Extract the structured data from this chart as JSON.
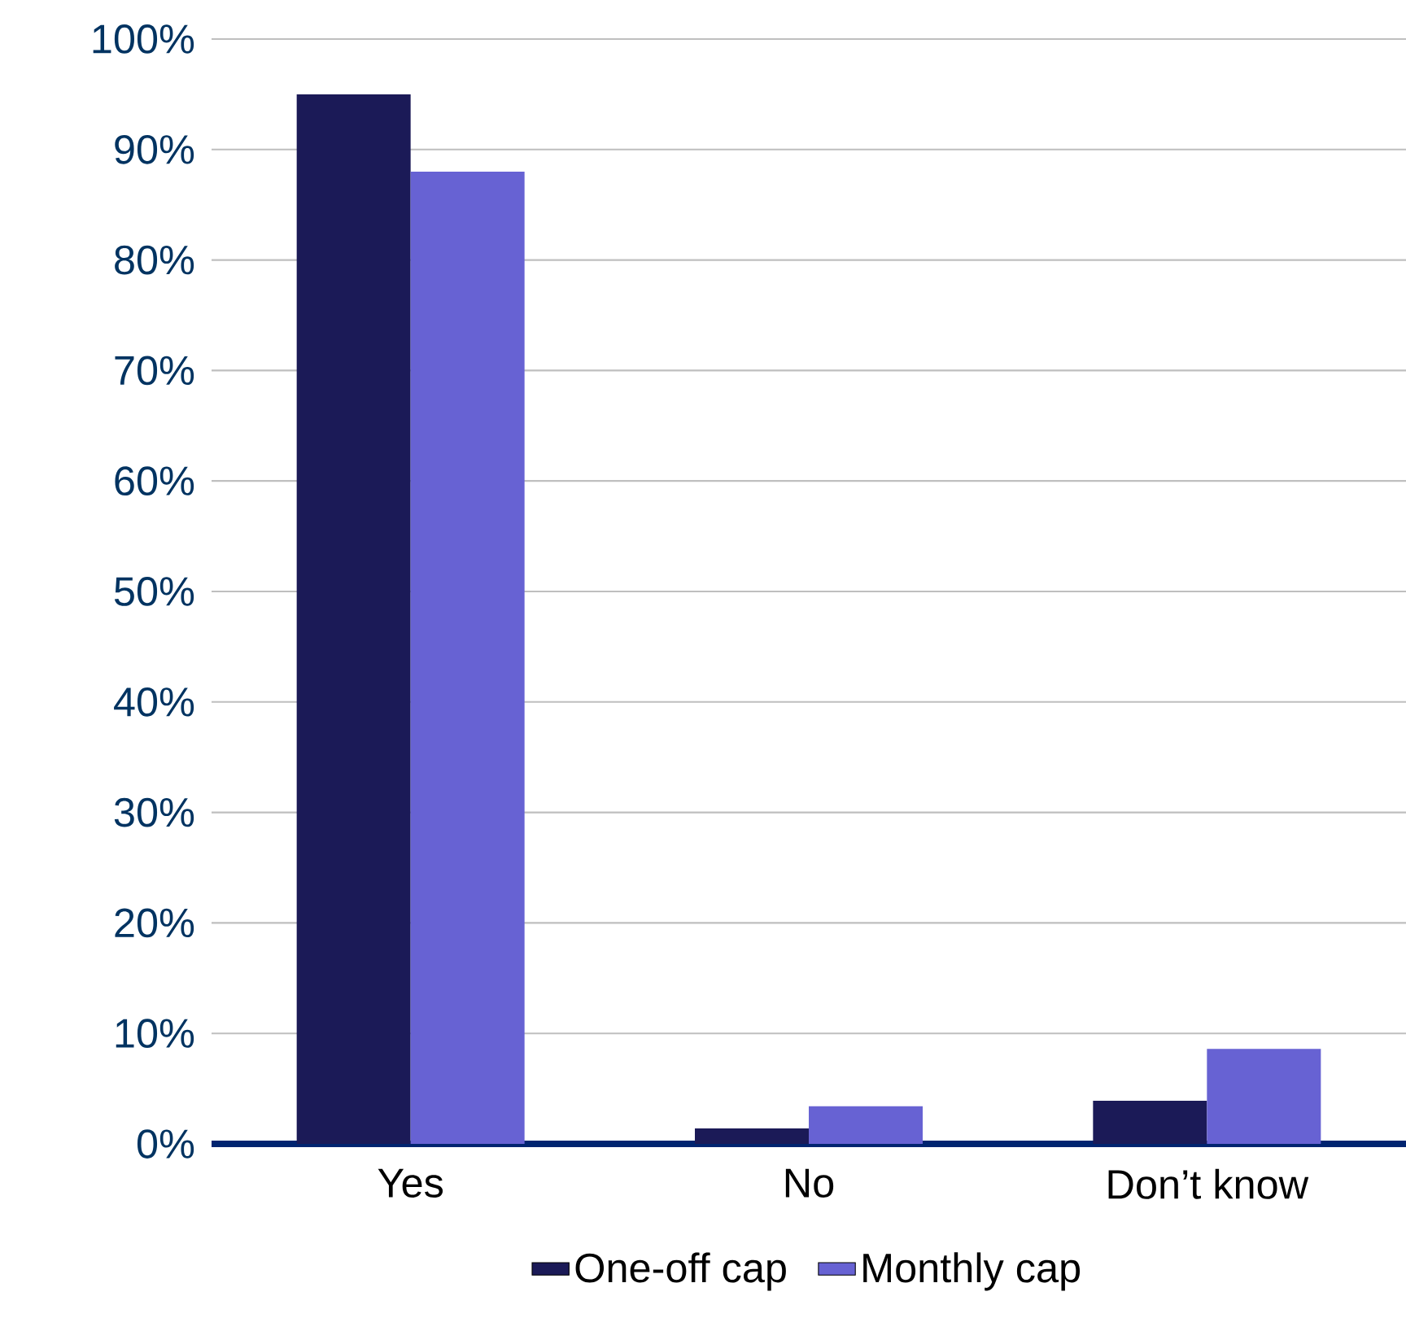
{
  "chart_data": {
    "type": "bar",
    "categories": [
      "Yes",
      "No",
      "Don’t know"
    ],
    "series": [
      {
        "name": "One-off cap",
        "color": "#1b1a57",
        "values": [
          95,
          1.4,
          3.9
        ]
      },
      {
        "name": "Monthly cap",
        "color": "#6762d3",
        "values": [
          88,
          3.4,
          8.6
        ]
      }
    ],
    "ylim": [
      0,
      100
    ],
    "yticks": [
      {
        "value": 0,
        "label": "0%"
      },
      {
        "value": 10,
        "label": "10%"
      },
      {
        "value": 20,
        "label": "20%"
      },
      {
        "value": 30,
        "label": "30%"
      },
      {
        "value": 40,
        "label": "40%"
      },
      {
        "value": 50,
        "label": "50%"
      },
      {
        "value": 60,
        "label": "60%"
      },
      {
        "value": 70,
        "label": "70%"
      },
      {
        "value": 80,
        "label": "80%"
      },
      {
        "value": 90,
        "label": "90%"
      },
      {
        "value": 100,
        "label": "100%"
      }
    ],
    "grid": "y",
    "legend": "bottom"
  }
}
